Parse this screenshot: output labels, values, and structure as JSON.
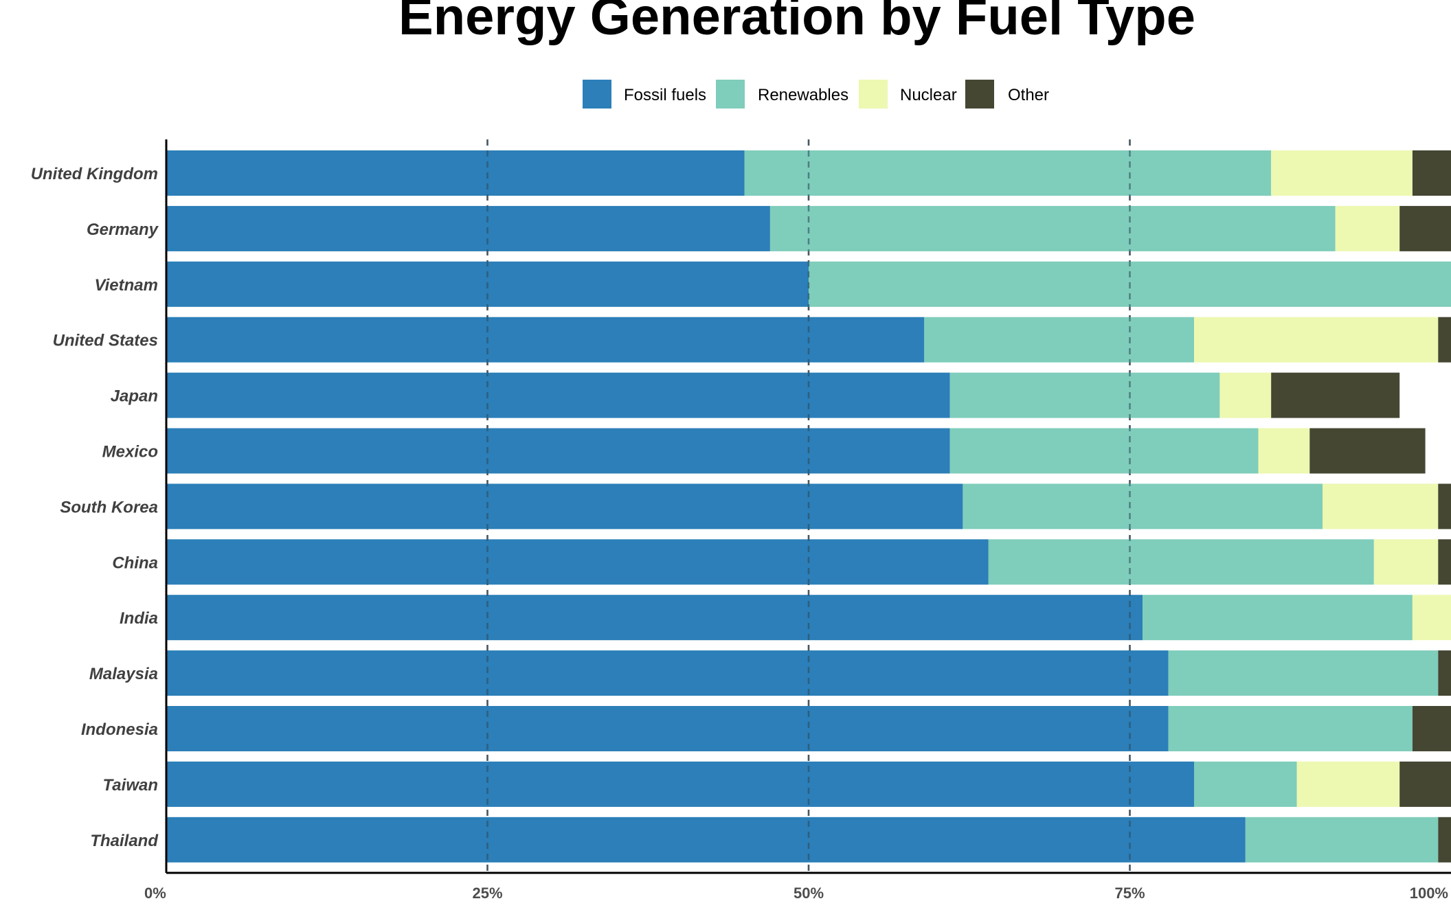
{
  "chart_data": {
    "type": "bar",
    "orientation": "horizontal",
    "stacked": "percent",
    "title": "Energy Generation by Fuel Type",
    "xlabel": "",
    "ylabel": "",
    "xlim": [
      0,
      100
    ],
    "x_ticks": [
      "0%",
      "25%",
      "50%",
      "75%",
      "100%"
    ],
    "x_tick_values": [
      0,
      25,
      50,
      75,
      100
    ],
    "grid": "vertical dashed at 25%, 50%, 75%",
    "legend_position": "top",
    "categories": [
      "United Kingdom",
      "Germany",
      "Vietnam",
      "United States",
      "Japan",
      "Mexico",
      "South Korea",
      "China",
      "India",
      "Malaysia",
      "Indonesia",
      "Taiwan",
      "Thailand"
    ],
    "series": [
      {
        "name": "Fossil fuels",
        "color": "#2c7fb8",
        "values": [
          45,
          47,
          50,
          59,
          61,
          61,
          62,
          64,
          76,
          78,
          78,
          80,
          84
        ]
      },
      {
        "name": "Renewables",
        "color": "#7fcdbb",
        "values": [
          41,
          44,
          50,
          21,
          21,
          24,
          28,
          30,
          21,
          21,
          19,
          8,
          15
        ]
      },
      {
        "name": "Nuclear",
        "color": "#edf8b1",
        "values": [
          11,
          5,
          0,
          19,
          4,
          4,
          9,
          5,
          3,
          0,
          0,
          8,
          0
        ]
      },
      {
        "name": "Other",
        "color": "#454733",
        "values": [
          3,
          4,
          0,
          1,
          10,
          9,
          1,
          1,
          0,
          1,
          3,
          4,
          1
        ]
      }
    ]
  }
}
